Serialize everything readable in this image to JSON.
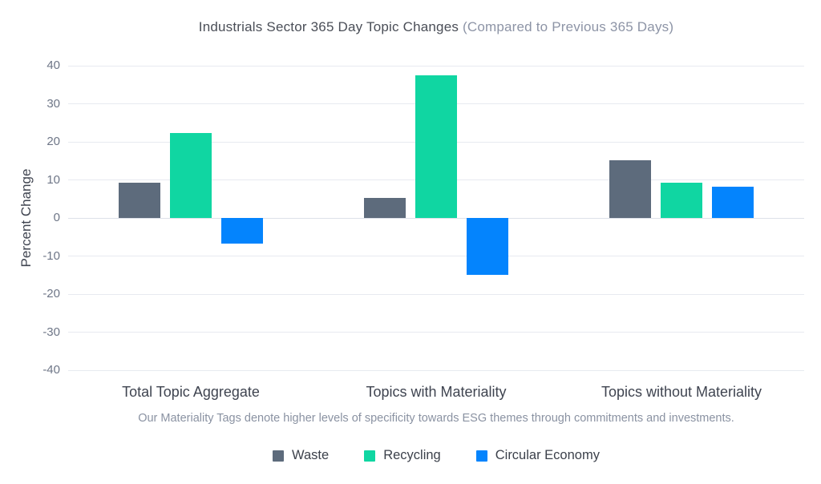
{
  "title": {
    "main": "Industrials Sector 365 Day Topic Changes",
    "sub": "(Compared to Previous 365 Days)"
  },
  "footnote": "Our Materiality Tags denote higher levels of specificity towards ESG themes through commitments and investments.",
  "colors": {
    "waste": "#5d6b7c",
    "recycling": "#10d6a2",
    "circular_economy": "#0484fd",
    "grid": "#e7eaf0",
    "zero_line": "#dde1e9",
    "title_main": "#4a4e57",
    "title_sub": "#8d94a6",
    "tick_label": "#6e7687",
    "axis_label": "#3f4450",
    "category_label": "#3f4450",
    "footnote": "#8a92a2",
    "legend_label": "#3c414b",
    "background": "#ffffff"
  },
  "chart_data": {
    "type": "bar",
    "title": "Industrials Sector 365 Day Topic Changes (Compared to Previous 365 Days)",
    "categories": [
      "Total Topic Aggregate",
      "Topics with Materiality",
      "Topics without Materiality"
    ],
    "series": [
      {
        "name": "Waste",
        "color": "#5d6b7c",
        "values": [
          9.2,
          5.3,
          15.2
        ]
      },
      {
        "name": "Recycling",
        "color": "#10d6a2",
        "values": [
          22.4,
          37.5,
          9.2
        ]
      },
      {
        "name": "Circular Economy",
        "color": "#0484fd",
        "values": [
          -6.8,
          -14.9,
          8.3
        ]
      }
    ],
    "xlabel": "",
    "ylabel": "Percent Change",
    "ylim": [
      -40,
      40
    ],
    "yticks": [
      40,
      30,
      20,
      10,
      0,
      -10,
      -20,
      -30,
      -40
    ],
    "grid": true,
    "legend_position": "bottom"
  }
}
